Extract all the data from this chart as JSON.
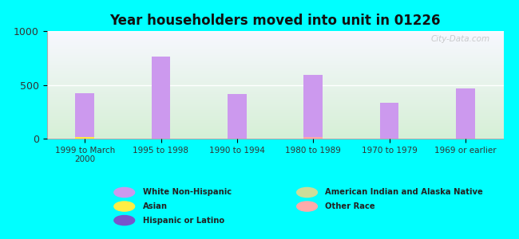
{
  "title": "Year householders moved into unit in 01226",
  "background_color": "#00FFFF",
  "categories": [
    "1999 to March\n2000",
    "1995 to 1998",
    "1990 to 1994",
    "1980 to 1989",
    "1970 to 1979",
    "1969 or earlier"
  ],
  "series": [
    {
      "name": "White Non-Hispanic",
      "values": [
        420,
        760,
        415,
        590,
        335,
        470
      ],
      "color": "#cc99ee"
    },
    {
      "name": "Asian",
      "values": [
        18,
        0,
        0,
        0,
        0,
        0
      ],
      "color": "#ffee44"
    },
    {
      "name": "Hispanic or Latino",
      "values": [
        0,
        0,
        0,
        0,
        0,
        0
      ],
      "color": "#7755cc"
    },
    {
      "name": "American Indian and Alaska Native",
      "values": [
        0,
        0,
        0,
        0,
        0,
        0
      ],
      "color": "#ccdd99"
    },
    {
      "name": "Other Race",
      "values": [
        0,
        0,
        0,
        12,
        0,
        0
      ],
      "color": "#ffaaaa"
    }
  ],
  "ylim": [
    0,
    1000
  ],
  "yticks": [
    0,
    500,
    1000
  ],
  "bar_width": 0.25,
  "watermark": "City-Data.com",
  "legend_items_left": [
    {
      "label": "White Non-Hispanic",
      "color": "#cc99ee"
    },
    {
      "label": "Asian",
      "color": "#ffee44"
    },
    {
      "label": "Hispanic or Latino",
      "color": "#7755cc"
    }
  ],
  "legend_items_right": [
    {
      "label": "American Indian and Alaska Native",
      "color": "#ccdd99"
    },
    {
      "label": "Other Race",
      "color": "#ffaaaa"
    }
  ],
  "plot_bg_top": "#f8f8ff",
  "plot_bg_bottom": "#d8f0d8",
  "grid_color": "#ffffff",
  "spine_color": "#aaaaaa",
  "text_color": "#333333"
}
